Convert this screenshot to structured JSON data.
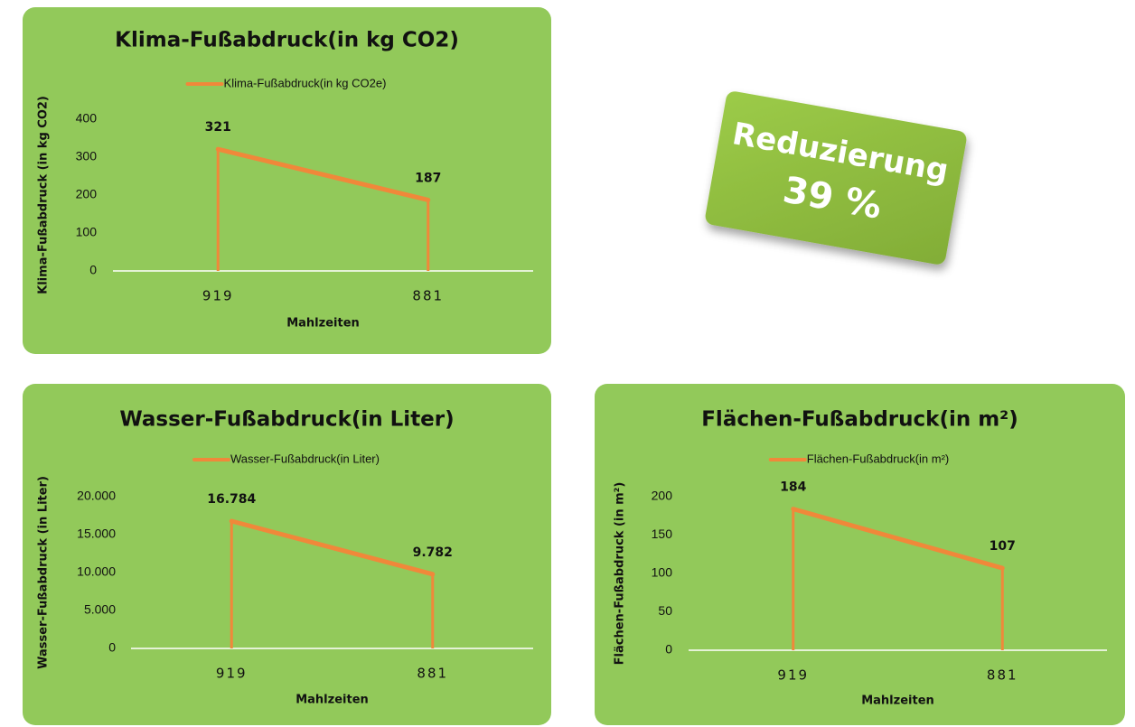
{
  "chart_data": [
    {
      "type": "line",
      "title": "Klima-Fußabdruck(in kg CO2)",
      "xlabel": "Mahlzeiten",
      "ylabel": "Klima-Fußabdruck  (in kg CO2)",
      "categories": [
        "919",
        "881"
      ],
      "series": [
        {
          "name": "Klima-Fußabdruck(in kg CO2e)",
          "color": "#f0883a",
          "values": [
            321,
            187
          ]
        }
      ],
      "ylim": [
        0,
        400
      ],
      "yticks": [
        0,
        100,
        200,
        300,
        400
      ],
      "drop_lines": true
    },
    {
      "type": "line",
      "title": "Wasser-Fußabdruck(in Liter)",
      "xlabel": "Mahlzeiten",
      "ylabel": "Wasser-Fußabdruck  (in Liter)",
      "categories": [
        "919",
        "881"
      ],
      "series": [
        {
          "name": "Wasser-Fußabdruck(in Liter)",
          "color": "#f0883a",
          "values": [
            16784,
            9782
          ],
          "value_labels": [
            "16.784",
            "9.782"
          ]
        }
      ],
      "ylim": [
        0,
        20000
      ],
      "yticks": [
        0,
        {
          "value": 5000,
          "label": "5.000"
        },
        {
          "value": 10000,
          "label": "10.000"
        },
        {
          "value": 15000,
          "label": "15.000"
        },
        {
          "value": 20000,
          "label": "20.000"
        }
      ],
      "drop_lines": true
    },
    {
      "type": "line",
      "title": "Flächen-Fußabdruck(in m²)",
      "xlabel": "Mahlzeiten",
      "ylabel": "Flächen-Fußabdruck  (in m²)",
      "categories": [
        "919",
        "881"
      ],
      "series": [
        {
          "name": "Flächen-Fußabdruck(in m²)",
          "color": "#f0883a",
          "values": [
            184,
            107
          ]
        }
      ],
      "ylim": [
        0,
        200
      ],
      "yticks": [
        0,
        50,
        100,
        150,
        200
      ],
      "drop_lines": true
    }
  ],
  "badge": {
    "title": "Reduzierung",
    "value": "39 %"
  }
}
